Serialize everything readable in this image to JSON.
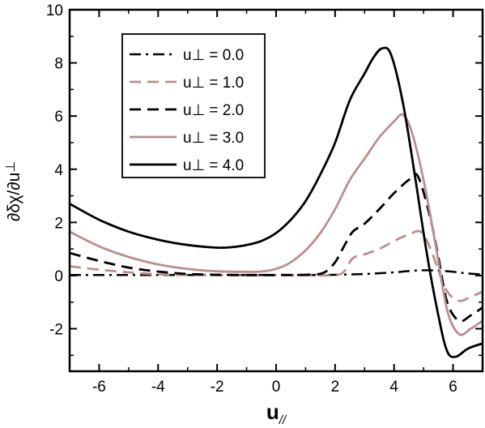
{
  "chart_data": {
    "type": "line",
    "xlabel": "u",
    "xlabel_sub": "//",
    "ylabel": "∂δχ/∂u",
    "ylabel_sub": "⊥",
    "xlim": [
      -7,
      7
    ],
    "ylim": [
      -3.6,
      10
    ],
    "xticks": [
      -6,
      -4,
      -2,
      0,
      2,
      4,
      6
    ],
    "yticks": [
      -2,
      0,
      2,
      4,
      6,
      8,
      10
    ],
    "legend_position": "top-left",
    "series": [
      {
        "name": "u⊥ = 0.0",
        "color": "#000000",
        "dash": "dashdot",
        "width": 2.5,
        "points": [
          [
            -7,
            0.02
          ],
          [
            -5,
            0.02
          ],
          [
            -3,
            0.02
          ],
          [
            -1,
            0.02
          ],
          [
            0,
            0.02
          ],
          [
            1,
            0.02
          ],
          [
            2,
            0.03
          ],
          [
            3,
            0.06
          ],
          [
            4,
            0.12
          ],
          [
            4.5,
            0.17
          ],
          [
            5,
            0.2
          ],
          [
            5.5,
            0.19
          ],
          [
            6,
            0.14
          ],
          [
            6.5,
            0.08
          ],
          [
            7,
            0.04
          ]
        ]
      },
      {
        "name": "u⊥ = 1.0",
        "color": "#bb8e8e",
        "dash": "dashed",
        "width": 2.8,
        "points": [
          [
            -7,
            0.35
          ],
          [
            -6,
            0.22
          ],
          [
            -5,
            0.12
          ],
          [
            -4,
            0.05
          ],
          [
            -3,
            0.02
          ],
          [
            -1,
            0.01
          ],
          [
            0,
            0.01
          ],
          [
            1,
            0.01
          ],
          [
            2,
            0.02
          ],
          [
            2.3,
            0.15
          ],
          [
            2.6,
            0.65
          ],
          [
            3,
            0.8
          ],
          [
            3.5,
            1.0
          ],
          [
            4,
            1.3
          ],
          [
            4.5,
            1.55
          ],
          [
            4.9,
            1.65
          ],
          [
            5.2,
            1.1
          ],
          [
            5.5,
            0.2
          ],
          [
            5.8,
            -0.6
          ],
          [
            6.2,
            -0.95
          ],
          [
            6.6,
            -0.8
          ],
          [
            7,
            -0.6
          ]
        ]
      },
      {
        "name": "u⊥ = 2.0",
        "color": "#000000",
        "dash": "dashed",
        "width": 2.8,
        "points": [
          [
            -7,
            0.85
          ],
          [
            -6,
            0.55
          ],
          [
            -5,
            0.3
          ],
          [
            -4,
            0.15
          ],
          [
            -3,
            0.06
          ],
          [
            -2,
            0.03
          ],
          [
            -1,
            0.02
          ],
          [
            0,
            0.02
          ],
          [
            1,
            0.03
          ],
          [
            1.6,
            0.1
          ],
          [
            2,
            0.5
          ],
          [
            2.3,
            1.1
          ],
          [
            2.6,
            1.65
          ],
          [
            3,
            1.95
          ],
          [
            3.5,
            2.5
          ],
          [
            4,
            3.1
          ],
          [
            4.5,
            3.6
          ],
          [
            4.8,
            3.75
          ],
          [
            5.2,
            2.3
          ],
          [
            5.5,
            0.7
          ],
          [
            5.8,
            -1.0
          ],
          [
            6.2,
            -1.7
          ],
          [
            6.6,
            -1.5
          ],
          [
            7,
            -1.2
          ]
        ]
      },
      {
        "name": "u⊥ = 3.0",
        "color": "#bb8e8e",
        "dash": "solid",
        "width": 2.8,
        "points": [
          [
            -7,
            1.65
          ],
          [
            -6,
            1.1
          ],
          [
            -5,
            0.7
          ],
          [
            -4,
            0.42
          ],
          [
            -3,
            0.25
          ],
          [
            -2,
            0.16
          ],
          [
            -1,
            0.14
          ],
          [
            -0.5,
            0.15
          ],
          [
            0,
            0.25
          ],
          [
            0.5,
            0.5
          ],
          [
            1,
            0.95
          ],
          [
            1.5,
            1.6
          ],
          [
            2,
            2.5
          ],
          [
            2.5,
            3.6
          ],
          [
            3,
            4.4
          ],
          [
            3.5,
            5.2
          ],
          [
            4,
            5.8
          ],
          [
            4.3,
            6.05
          ],
          [
            4.6,
            5.4
          ],
          [
            5,
            3.6
          ],
          [
            5.4,
            1.2
          ],
          [
            5.8,
            -1.3
          ],
          [
            6.2,
            -2.2
          ],
          [
            6.6,
            -2.0
          ],
          [
            7,
            -1.7
          ]
        ]
      },
      {
        "name": "u⊥ = 4.0",
        "color": "#000000",
        "dash": "solid",
        "width": 2.8,
        "points": [
          [
            -7,
            2.7
          ],
          [
            -6,
            2.1
          ],
          [
            -5,
            1.65
          ],
          [
            -4,
            1.35
          ],
          [
            -3,
            1.15
          ],
          [
            -2,
            1.05
          ],
          [
            -1.5,
            1.07
          ],
          [
            -1,
            1.15
          ],
          [
            -0.5,
            1.3
          ],
          [
            0,
            1.6
          ],
          [
            0.5,
            2.1
          ],
          [
            1,
            2.8
          ],
          [
            1.5,
            3.8
          ],
          [
            2,
            5.0
          ],
          [
            2.5,
            6.6
          ],
          [
            3,
            7.6
          ],
          [
            3.3,
            8.2
          ],
          [
            3.6,
            8.55
          ],
          [
            3.9,
            8.3
          ],
          [
            4.3,
            6.5
          ],
          [
            4.7,
            3.8
          ],
          [
            5.1,
            0.9
          ],
          [
            5.5,
            -1.5
          ],
          [
            5.8,
            -2.85
          ],
          [
            6.1,
            -3.05
          ],
          [
            6.5,
            -2.75
          ],
          [
            7,
            -2.55
          ]
        ]
      }
    ]
  }
}
